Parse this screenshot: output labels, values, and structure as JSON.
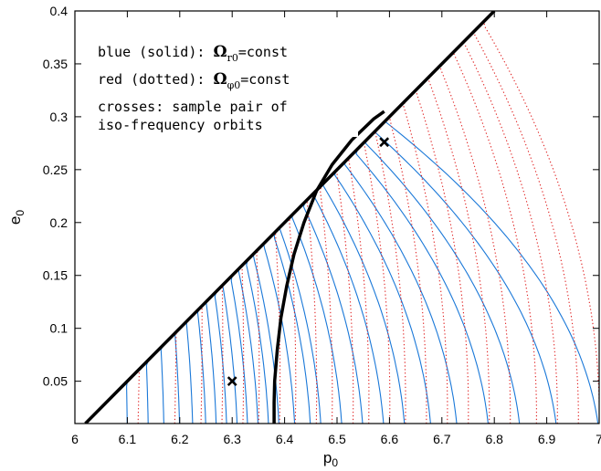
{
  "chart_data": {
    "type": "line",
    "title": "",
    "xlabel": {
      "main": "p",
      "sub": "0"
    },
    "ylabel": {
      "main": "e",
      "sub": "0"
    },
    "xlim": [
      6.0,
      7.0
    ],
    "ylim": [
      0.01,
      0.4
    ],
    "x_ticks": [
      "6",
      "6.1",
      "6.2",
      "6.3",
      "6.4",
      "6.5",
      "6.6",
      "6.7",
      "6.8",
      "6.9",
      "7"
    ],
    "y_ticks": [
      "0.05",
      "0.1",
      "0.15",
      "0.2",
      "0.25",
      "0.3",
      "0.35",
      "0.4"
    ],
    "grid": false,
    "legend_position": "top-left",
    "annotations": [
      {
        "prefix": "blue (solid): ",
        "symbol": "Ω",
        "sub": "r0",
        "suffix": "=const"
      },
      {
        "prefix": "red (dotted): ",
        "symbol": "Ω",
        "sub": "φ0",
        "suffix": "=const"
      },
      {
        "text": "crosses: sample pair of"
      },
      {
        "text": "iso-frequency orbits"
      }
    ],
    "separatrix": {
      "name": "separatrix p0 = 6 + 2 e0",
      "x": [
        6.02,
        6.8
      ],
      "y": [
        0.01,
        0.4
      ],
      "color": "#000000"
    },
    "iso_frequency_boundary": {
      "color": "#000000",
      "points": [
        [
          6.38,
          0.01
        ],
        [
          6.38,
          0.03
        ],
        [
          6.381,
          0.05
        ],
        [
          6.386,
          0.08
        ],
        [
          6.393,
          0.11
        ],
        [
          6.404,
          0.14
        ],
        [
          6.418,
          0.17
        ],
        [
          6.437,
          0.2
        ],
        [
          6.461,
          0.23
        ],
        [
          6.491,
          0.255
        ],
        [
          6.528,
          0.278
        ],
        [
          6.57,
          0.298
        ],
        [
          6.59,
          0.305
        ]
      ]
    },
    "crosses": [
      [
        6.3,
        0.05
      ],
      [
        6.59,
        0.276
      ]
    ],
    "series": [
      {
        "style": "solid",
        "color": "#1a78d8",
        "x_at_bottom": [
          6.1,
          6.14,
          6.17,
          6.2,
          6.225,
          6.25,
          6.27,
          6.29,
          6.31,
          6.33,
          6.35,
          6.37,
          6.39,
          6.42,
          6.45,
          6.47,
          6.51,
          6.55,
          6.59,
          6.63,
          6.68,
          6.73,
          6.79,
          6.85,
          6.92,
          7.0
        ]
      },
      {
        "style": "dotted",
        "color": "#e02020",
        "x_at_bottom": [
          6.12,
          6.19,
          6.24,
          6.28,
          6.32,
          6.35,
          6.39,
          6.42,
          6.46,
          6.49,
          6.53,
          6.56,
          6.6,
          6.63,
          6.67,
          6.71,
          6.75,
          6.79,
          6.83,
          6.88,
          6.92,
          6.96,
          7.0
        ]
      }
    ]
  }
}
